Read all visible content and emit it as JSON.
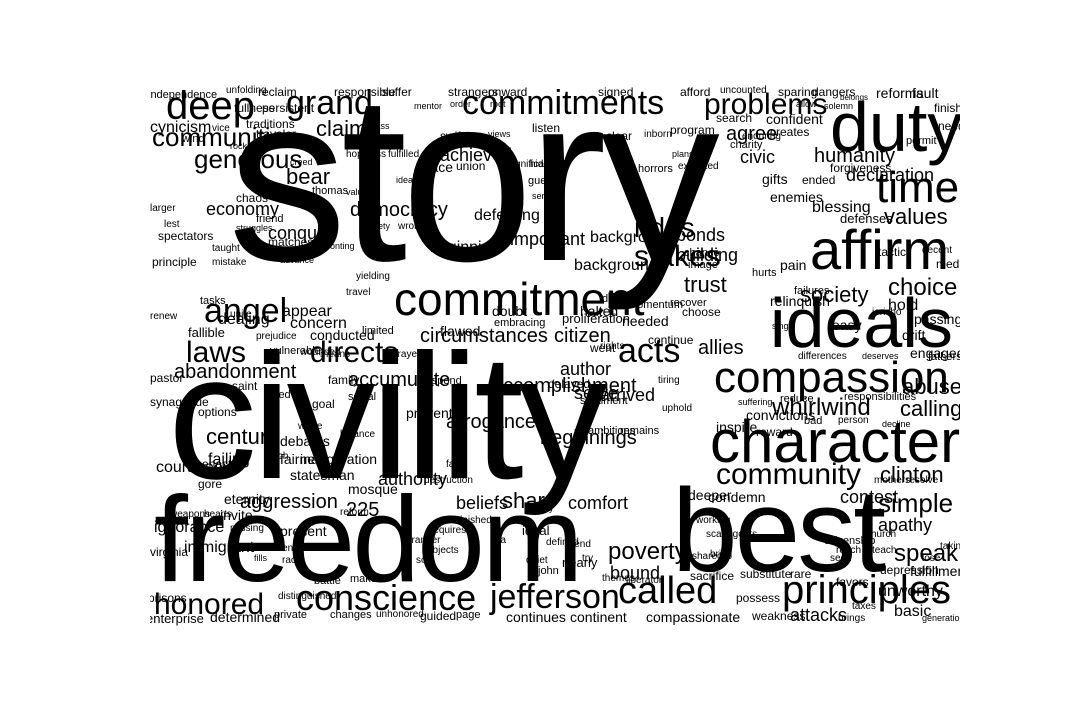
{
  "words": [
    "story",
    "civility",
    "freedom",
    "best",
    "duty",
    "ideals",
    "affirm",
    "character",
    "compassion",
    "commitment",
    "commitments",
    "principles",
    "times",
    "conscience",
    "jefferson",
    "called",
    "honored",
    "deep",
    "grand",
    "angel",
    "directs",
    "problems",
    "laws",
    "community",
    "whirlwind",
    "acts",
    "stakes",
    "rides",
    "communities",
    "generous",
    "choice",
    "society",
    "simple",
    "speak",
    "poverty",
    "share",
    "accomplishment",
    "beginnings",
    "citizen",
    "allies",
    "abandonment",
    "accumulate",
    "century",
    "aggression",
    "clinton",
    "calling",
    "abuse",
    "values",
    "defenses",
    "humanity",
    "declaration",
    "blessing",
    "civic",
    "agree",
    "trust",
    "circumstances",
    "achieved",
    "democracy",
    "claim",
    "bear",
    "conquer",
    "economy",
    "cynicism",
    "arrogance",
    "authority",
    "beliefs",
    "comfort",
    "serve",
    "author",
    "arrived",
    "contest",
    "condemn",
    "attacks",
    "basic",
    "apathy",
    "bound",
    "continues",
    "continent",
    "compassionate",
    "determined",
    "enterprise",
    "ignorance",
    "immigrant",
    "courageous",
    "failing",
    "options",
    "goal",
    "debates",
    "fairness",
    "statesman",
    "eternity",
    "invite",
    "present",
    "225",
    "background",
    "backgrounds",
    "important",
    "defeating",
    "beginning",
    "building",
    "bonds",
    "flawed",
    "concern",
    "dealing",
    "appear",
    "conducted",
    "fallible",
    "pastor",
    "family",
    "prevent",
    "inauguration",
    "mosque",
    "gore",
    "enact",
    "virginia",
    "prisons",
    "principle",
    "spectators",
    "unworthy",
    "deeper",
    "fulfillment",
    "engaged",
    "drift",
    "passing",
    "hold",
    "confident",
    "creates",
    "reforms",
    "fault",
    "finishing",
    "needs",
    "forgiveness",
    "enemies",
    "gifts",
    "ended",
    "permit",
    "tactic",
    "decent",
    "medicare",
    "pain",
    "relinquish",
    "failures",
    "easy",
    "differences",
    "deserves",
    "fathers",
    "responsibilities",
    "bad",
    "person",
    "decline",
    "convictions",
    "suffering",
    "inspire",
    "reward",
    "reduce",
    "continue",
    "tiring",
    "uphold",
    "went",
    "rights",
    "delayed",
    "halted",
    "needed",
    "doubt",
    "embracing",
    "proliferation",
    "direction",
    "momentum",
    "recover",
    "choose",
    "hurts",
    "single",
    "jericho",
    "chance",
    "image",
    "charity",
    "enduring",
    "search",
    "allow",
    "solemn",
    "sparing",
    "dangers",
    "afford",
    "uncounted",
    "signed",
    "strangers",
    "onward",
    "responsible",
    "reclaim",
    "unfolding",
    "independence",
    "persistent",
    "fullness",
    "traditions",
    "traveler",
    "vice",
    "wind",
    "rock",
    "mass",
    "suffer",
    "mentor",
    "swift",
    "views",
    "listen",
    "clear",
    "inborn",
    "program",
    "horrors",
    "plans",
    "expected",
    "fulfilled",
    "creed",
    "hopeless",
    "thomas",
    "chaos",
    "struggles",
    "taught",
    "friend",
    "matches",
    "confronting",
    "advance",
    "mistake",
    "lest",
    "larger",
    "tasks",
    "unite",
    "renew",
    "prejudice",
    "vulnerable",
    "wounded",
    "means",
    "prayer",
    "limited",
    "yielding",
    "travel",
    "sentiment",
    "ambitions",
    "remains",
    "petty",
    "fair",
    "destruction",
    "diminished",
    "respond",
    "social",
    "synagogue",
    "saint",
    "led",
    "wrote",
    "balance",
    "touch",
    "hearts",
    "missing",
    "weapons",
    "decency",
    "race",
    "grander",
    "subjects",
    "requires",
    "quiet",
    "try",
    "citizenship",
    "reach",
    "teach",
    "mothers",
    "resolve",
    "taking",
    "lose",
    "seed",
    "church",
    "scapegoats",
    "bring",
    "working",
    "favors",
    "depression",
    "taxes",
    "brings",
    "generation",
    "substitute",
    "rare",
    "possess",
    "weakness",
    "sacrifice",
    "liberator",
    "themes",
    "shared",
    "nearly",
    "john",
    "defined",
    "lend",
    "ideal",
    "sea",
    "soil",
    "battle",
    "makes",
    "distinguished",
    "fills",
    "private",
    "changes",
    "unhonored",
    "guided",
    "page",
    "reform",
    "belongs",
    "order",
    "root",
    "grace",
    "union",
    "insignificant",
    "hidden",
    "guests",
    "idealism",
    "servant",
    "valued",
    "safety",
    "wrong",
    "gain",
    "encouraging",
    "democratic",
    "necessary",
    "personal",
    "passed",
    "priorities",
    "slaveholding",
    "road",
    "risk",
    "course",
    "shaping",
    "spared"
  ]
}
